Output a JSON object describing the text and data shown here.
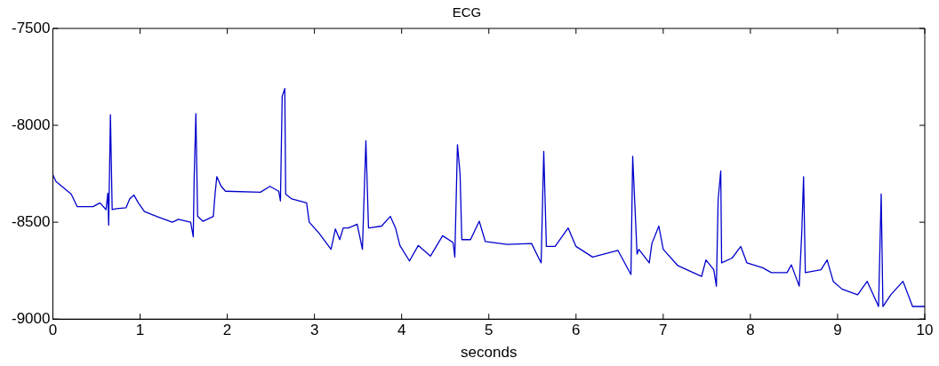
{
  "chart_data": {
    "type": "line",
    "title": "ECG",
    "xlabel": "seconds",
    "xlim": [
      0,
      10
    ],
    "xticks": [
      0,
      1,
      2,
      3,
      4,
      5,
      6,
      7,
      8,
      9,
      10
    ],
    "ylim": [
      -9000,
      -7500
    ],
    "yticks": [
      -9000,
      -8500,
      -8000,
      -7500
    ],
    "grid": false,
    "legend": false,
    "marker": "none",
    "series": [
      {
        "color": "#0000cc",
        "x": [
          0,
          0.035,
          0.21,
          0.28,
          0.46,
          0.54,
          0.61,
          0.63,
          0.64,
          0.66,
          0.68,
          0.73,
          0.84,
          0.88,
          0.93,
          0.98,
          1.05,
          1.19,
          1.37,
          1.44,
          1.58,
          1.61,
          1.62,
          1.64,
          1.66,
          1.72,
          1.84,
          1.86,
          1.88,
          1.93,
          1.98,
          2.38,
          2.49,
          2.59,
          2.61,
          2.63,
          2.66,
          2.67,
          2.74,
          2.91,
          2.94,
          3.05,
          3.19,
          3.24,
          3.29,
          3.33,
          3.39,
          3.49,
          3.55,
          3.59,
          3.62,
          3.77,
          3.87,
          3.93,
          3.98,
          4.09,
          4.19,
          4.33,
          4.47,
          4.59,
          4.61,
          4.64,
          4.67,
          4.69,
          4.79,
          4.89,
          4.96,
          5.21,
          5.49,
          5.6,
          5.63,
          5.66,
          5.76,
          5.91,
          6.0,
          6.19,
          6.48,
          6.63,
          6.65,
          6.7,
          6.72,
          6.84,
          6.87,
          6.95,
          7.0,
          7.17,
          7.44,
          7.49,
          7.58,
          7.61,
          7.63,
          7.66,
          7.67,
          7.79,
          7.89,
          7.96,
          8.14,
          8.24,
          8.42,
          8.47,
          8.56,
          8.59,
          8.61,
          8.63,
          8.81,
          8.88,
          8.95,
          9.05,
          9.23,
          9.34,
          9.47,
          9.5,
          9.52,
          9.61,
          9.75,
          9.86,
          10
        ],
        "values": [
          -8255,
          -8290,
          -8355,
          -8420,
          -8420,
          -8400,
          -8435,
          -8350,
          -8515,
          -7945,
          -8435,
          -8430,
          -8425,
          -8380,
          -8360,
          -8400,
          -8445,
          -8470,
          -8500,
          -8485,
          -8500,
          -8575,
          -8280,
          -7940,
          -8470,
          -8495,
          -8470,
          -8355,
          -8265,
          -8315,
          -8340,
          -8345,
          -8315,
          -8340,
          -8390,
          -7850,
          -7810,
          -8355,
          -8380,
          -8400,
          -8500,
          -8555,
          -8640,
          -8535,
          -8590,
          -8530,
          -8530,
          -8510,
          -8640,
          -8080,
          -8530,
          -8520,
          -8470,
          -8530,
          -8620,
          -8700,
          -8620,
          -8675,
          -8570,
          -8605,
          -8680,
          -8100,
          -8250,
          -8590,
          -8590,
          -8495,
          -8600,
          -8615,
          -8610,
          -8710,
          -8135,
          -8625,
          -8625,
          -8530,
          -8625,
          -8680,
          -8645,
          -8770,
          -8160,
          -8665,
          -8640,
          -8710,
          -8610,
          -8520,
          -8640,
          -8725,
          -8780,
          -8695,
          -8745,
          -8830,
          -8385,
          -8235,
          -8710,
          -8685,
          -8625,
          -8710,
          -8735,
          -8760,
          -8760,
          -8720,
          -8830,
          -8545,
          -8265,
          -8760,
          -8745,
          -8695,
          -8805,
          -8845,
          -8875,
          -8805,
          -8935,
          -8355,
          -8935,
          -8875,
          -8805,
          -8935,
          -8935
        ]
      }
    ]
  }
}
